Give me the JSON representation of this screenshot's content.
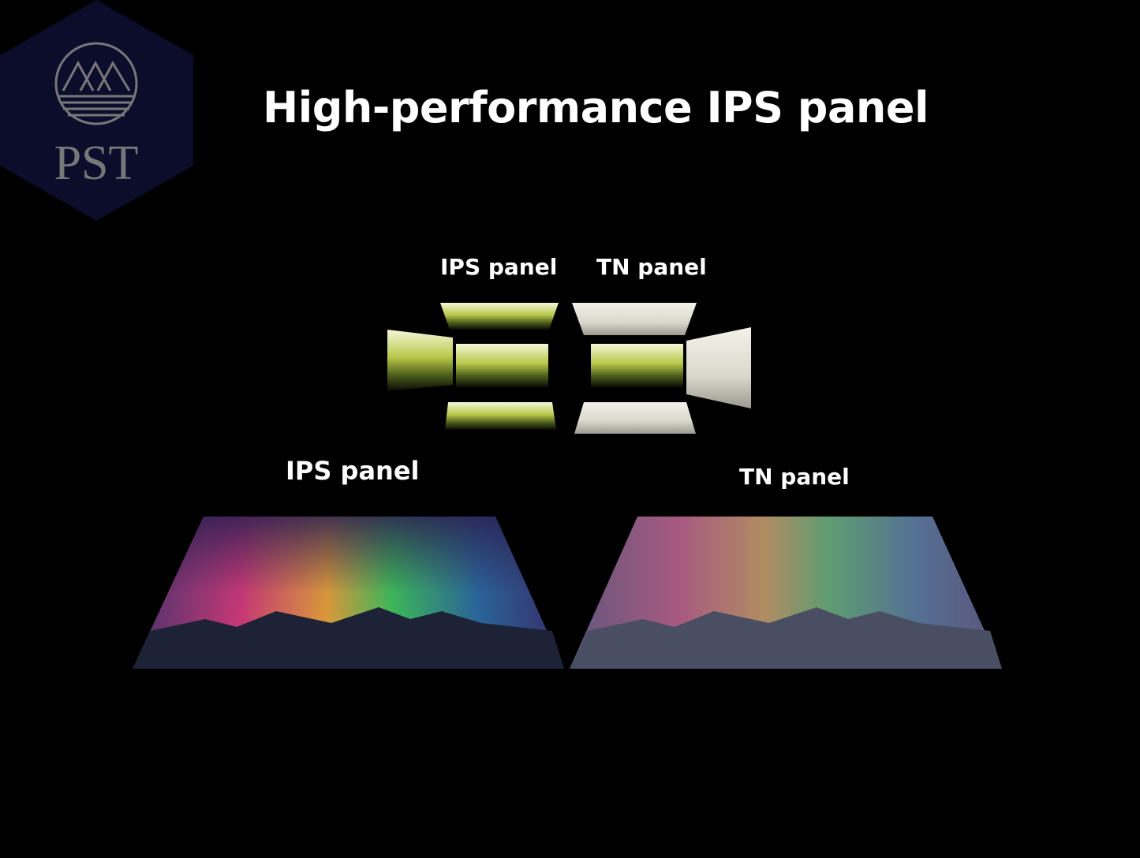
{
  "logo": {
    "text": "PST",
    "color": "#0b0d2a",
    "mark_color": "#77777a"
  },
  "title": "High-performance IPS panel",
  "viewing_angle": {
    "ips_label": "IPS panel",
    "tn_label": "TN panel"
  },
  "comparison": {
    "ips_label": "IPS panel",
    "tn_label": "TN panel"
  }
}
